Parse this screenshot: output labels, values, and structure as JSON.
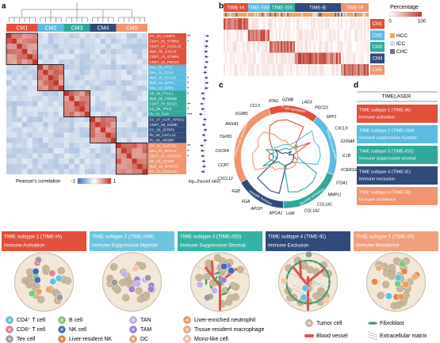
{
  "panel_labels": [
    "a",
    "b",
    "c",
    "d"
  ],
  "panel_a": {
    "clusters": [
      {
        "name": "CM1",
        "color": "#e2503a",
        "modules": [
          "DC_03_LAMP3",
          "CD4T_05_STMN1",
          "CD4T_07_CXCL13",
          "Mph_08_CXCL9",
          "CD8T_13_STMN1",
          "CD8T_10_PDCD1"
        ],
        "significance": [
          "**",
          "*",
          null,
          null,
          null,
          null
        ],
        "hazard_log10": [
          0.15,
          0.12,
          0.1,
          0.08,
          0.1,
          0.12
        ],
        "hazard_err": [
          0.1,
          0.1,
          0.1,
          0.1,
          0.1,
          0.1
        ]
      },
      {
        "name": "CM2",
        "color": "#5bbbe0",
        "modules": [
          "Neu_09_IFIT1",
          "Neu_11_CCL4",
          "Mph_02_CCL20",
          "Mph_03_SPP1",
          "Neu_10_SPP1"
        ],
        "significance": [
          null,
          null,
          "*",
          "*",
          "*"
        ],
        "hazard_log10": [
          0.05,
          0.03,
          0.1,
          0.12,
          0.1
        ],
        "hazard_err": [
          0.1,
          0.1,
          0.1,
          0.1,
          0.1
        ]
      },
      {
        "name": "CM3",
        "color": "#2fa99b",
        "modules": [
          "NK_06_ITGA1",
          "Mph_06_TREM2",
          "CD4T_04_BAG3",
          "EC_05_TFF3",
          "Fb_01_FAP"
        ],
        "significance": [
          "*",
          null,
          "**",
          "*",
          "***"
        ],
        "hazard_log10": [
          -0.1,
          -0.05,
          -0.15,
          -0.1,
          -0.2
        ],
        "hazard_err": [
          0.1,
          0.1,
          0.1,
          0.1,
          0.1
        ]
      },
      {
        "name": "CM4",
        "color": "#2f4a7c",
        "modules": [
          "EC_07_KDR_APOA2",
          "CD8T_06_GZMK",
          "EC_06_SFRP5",
          "Fb_05_CXCL12",
          "Fb_06_ABI3BP"
        ],
        "significance": [
          null,
          null,
          null,
          null,
          null
        ],
        "hazard_log10": [
          0.02,
          -0.03,
          0.05,
          -0.05,
          0.03
        ],
        "hazard_err": [
          0.1,
          0.1,
          0.1,
          0.1,
          0.1
        ]
      },
      {
        "name": "CM5",
        "color": "#f2946e",
        "modules": [
          "DC_01_CLEC9A",
          "Neu_07_APOA2",
          "CD4T_03_GPR183",
          "NK_03_CD160",
          "Mph_10_MARCO",
          "EC_01_CLEC4A"
        ],
        "significance": [
          "**",
          "*",
          "*",
          null,
          null,
          null
        ],
        "hazard_log10": [
          -0.15,
          -0.12,
          -0.1,
          -0.05,
          -0.03,
          -0.08
        ],
        "hazard_err": [
          0.1,
          0.1,
          0.1,
          0.1,
          0.1,
          0.1
        ]
      }
    ],
    "hazard_xlim": [
      -0.6,
      0.6
    ],
    "colorbar_label": "Pearson's correlation",
    "colorbar_ticks": [
      -1,
      1
    ],
    "forest_axis_label": "log₁₀(hazard ratio)"
  },
  "panel_b": {
    "subtypes": [
      {
        "name": "TIME-IA",
        "color": "#e2503a"
      },
      {
        "name": "TIME-ISM",
        "color": "#5bbbe0"
      },
      {
        "name": "TIME-ISS",
        "color": "#2fa99b"
      },
      {
        "name": "TIME-IE",
        "color": "#2f4a7c"
      },
      {
        "name": "TIME-IR",
        "color": "#f2946e"
      }
    ],
    "rows": [
      {
        "name": "CM1",
        "color": "#e2503a"
      },
      {
        "name": "CM2",
        "color": "#5bbbe0"
      },
      {
        "name": "CM3",
        "color": "#2fa99b"
      },
      {
        "name": "CM4",
        "color": "#2f4a7c"
      },
      {
        "name": "CM5",
        "color": "#f2946e"
      }
    ],
    "legend_title": "Percentage",
    "legend_ticks": [
      0,
      100
    ],
    "cancer_types": [
      {
        "name": "HCC",
        "color": "#f0a35e"
      },
      {
        "name": "ICC",
        "color": "#cfdcea"
      },
      {
        "name": "CHC",
        "color": "#6f6f8a"
      }
    ]
  },
  "panel_c": {
    "genes": [
      "IFNG",
      "GZMB",
      "LAG3",
      "PDCD1",
      "SPP1",
      "CXCL9",
      "S100A8",
      "IL1B",
      "FCER1G",
      "ITGA1",
      "MMP11",
      "COL1A1",
      "COL1A2",
      "LUM",
      "APOA1",
      "APOH",
      "FGA",
      "FGB",
      "CXCL12",
      "CCR7",
      "CXCR4",
      "TGFB1",
      "ANXA1",
      "KLRB1",
      "CCL5"
    ],
    "sectors": [
      {
        "name": "T cell activation",
        "color": "#e2503a",
        "first": 0,
        "last": 3
      },
      {
        "name": "Myeloid recruitment",
        "color": "#5bbbe0",
        "first": 4,
        "last": 8
      },
      {
        "name": "Stromal activation",
        "color": "#2fa99b",
        "first": 9,
        "last": 13
      },
      {
        "name": "Hepatic function",
        "color": "#2f4a7c",
        "first": 14,
        "last": 17
      },
      {
        "name": "Lymphocyte residence",
        "color": "#f2946e",
        "first": 18,
        "last": 24
      }
    ],
    "rlim": [
      0,
      1
    ],
    "series": [
      {
        "color": "#e2503a",
        "values": [
          0.9,
          0.9,
          0.85,
          0.85,
          0.3,
          0.7,
          0.2,
          0.2,
          0.3,
          0.3,
          0.2,
          0.2,
          0.2,
          0.2,
          0.2,
          0.2,
          0.2,
          0.2,
          0.3,
          0.4,
          0.4,
          0.3,
          0.4,
          0.6,
          0.85
        ]
      },
      {
        "color": "#5bbbe0",
        "values": [
          0.3,
          0.3,
          0.3,
          0.4,
          0.9,
          0.8,
          0.85,
          0.85,
          0.8,
          0.3,
          0.3,
          0.3,
          0.3,
          0.3,
          0.2,
          0.2,
          0.2,
          0.2,
          0.3,
          0.2,
          0.3,
          0.3,
          0.4,
          0.3,
          0.3
        ]
      },
      {
        "color": "#2fa99b",
        "values": [
          0.2,
          0.2,
          0.2,
          0.2,
          0.4,
          0.3,
          0.3,
          0.3,
          0.4,
          0.85,
          0.9,
          0.9,
          0.9,
          0.85,
          0.2,
          0.2,
          0.2,
          0.2,
          0.6,
          0.3,
          0.3,
          0.5,
          0.3,
          0.2,
          0.2
        ]
      },
      {
        "color": "#2f4a7c",
        "values": [
          0.1,
          0.1,
          0.1,
          0.1,
          0.2,
          0.1,
          0.2,
          0.2,
          0.2,
          0.2,
          0.2,
          0.2,
          0.2,
          0.2,
          0.9,
          0.9,
          0.85,
          0.85,
          0.3,
          0.2,
          0.2,
          0.2,
          0.3,
          0.1,
          0.1
        ]
      },
      {
        "color": "#f2946e",
        "values": [
          0.4,
          0.4,
          0.3,
          0.3,
          0.3,
          0.3,
          0.3,
          0.3,
          0.3,
          0.3,
          0.3,
          0.3,
          0.3,
          0.3,
          0.3,
          0.3,
          0.4,
          0.4,
          0.8,
          0.8,
          0.8,
          0.7,
          0.8,
          0.8,
          0.6
        ]
      }
    ]
  },
  "panel_d": {
    "title": "TIMELASER",
    "items": [
      {
        "name": "TIME subtype 1 (TIME-IA)",
        "desc": "Immune activation",
        "color": "#e2503a"
      },
      {
        "name": "TIME subtype 2 (TIME-ISM)",
        "desc": "Immune suppressive myeloid",
        "color": "#5bbbe0"
      },
      {
        "name": "TIME subtype 3 (TIME-ISS)",
        "desc": "Immune suppressive stromal",
        "color": "#2fa99b"
      },
      {
        "name": "TIME subtype 4 (TIME-IE)",
        "desc": "Immune exclusion",
        "color": "#2f4a7c"
      },
      {
        "name": "TIME subtype 5 (TIME-IR)",
        "desc": "Immune residence",
        "color": "#f2946e"
      }
    ]
  },
  "illustration": {
    "subtypes": [
      {
        "name": "TIME subtype 1 (TIME-IA)",
        "desc": "Immune Activation",
        "color": "#e2503a"
      },
      {
        "name": "TIME subtype 2 (TIME-ISM)",
        "desc": "Immune Suppressive Myeloid",
        "color": "#6cc5e0"
      },
      {
        "name": "TIME subtype 3 (TIME-ISS)",
        "desc": "Immune Suppressive Stromal",
        "color": "#35b2a5"
      },
      {
        "name": "TIME subtype 4 (TIME-IE)",
        "desc": "Immune Exclusion",
        "color": "#2f4a7c"
      },
      {
        "name": "TIME subtype 5 (TIME-IR)",
        "desc": "Immune Residence",
        "color": "#f2a07b"
      }
    ],
    "legend": [
      {
        "name": "CD4⁺ T cell",
        "color": "#5ec3e3"
      },
      {
        "name": "CD8⁺ T cell",
        "color": "#e57f90"
      },
      {
        "name": "Tex cell",
        "color": "#9a9a9a"
      },
      {
        "name": "B cell",
        "color": "#7dcc7a"
      },
      {
        "name": "NK cell",
        "color": "#3e6db8"
      },
      {
        "name": "Liver-resident NK",
        "color": "#e8873c"
      },
      {
        "name": "TAN",
        "color": "#c2b2ea"
      },
      {
        "name": "TAM",
        "color": "#a27fd6"
      },
      {
        "name": "DC",
        "color": "#eaa66a"
      },
      {
        "name": "Liver-enriched neutrophil",
        "color": "#f09a5a"
      },
      {
        "name": "Tissue-resident macrophage",
        "color": "#e8b07a"
      },
      {
        "name": "Mono-like cell",
        "color": "#f3c9a0"
      },
      {
        "name": "Tumor cell",
        "color": "#c9b79a"
      },
      {
        "name": "Blood vessel",
        "color": "#d9534f"
      },
      {
        "name": "Fibroblast",
        "color": "#3f9a6a"
      },
      {
        "name": "Extracellular matrix",
        "color": "#8a8a8a"
      }
    ]
  }
}
